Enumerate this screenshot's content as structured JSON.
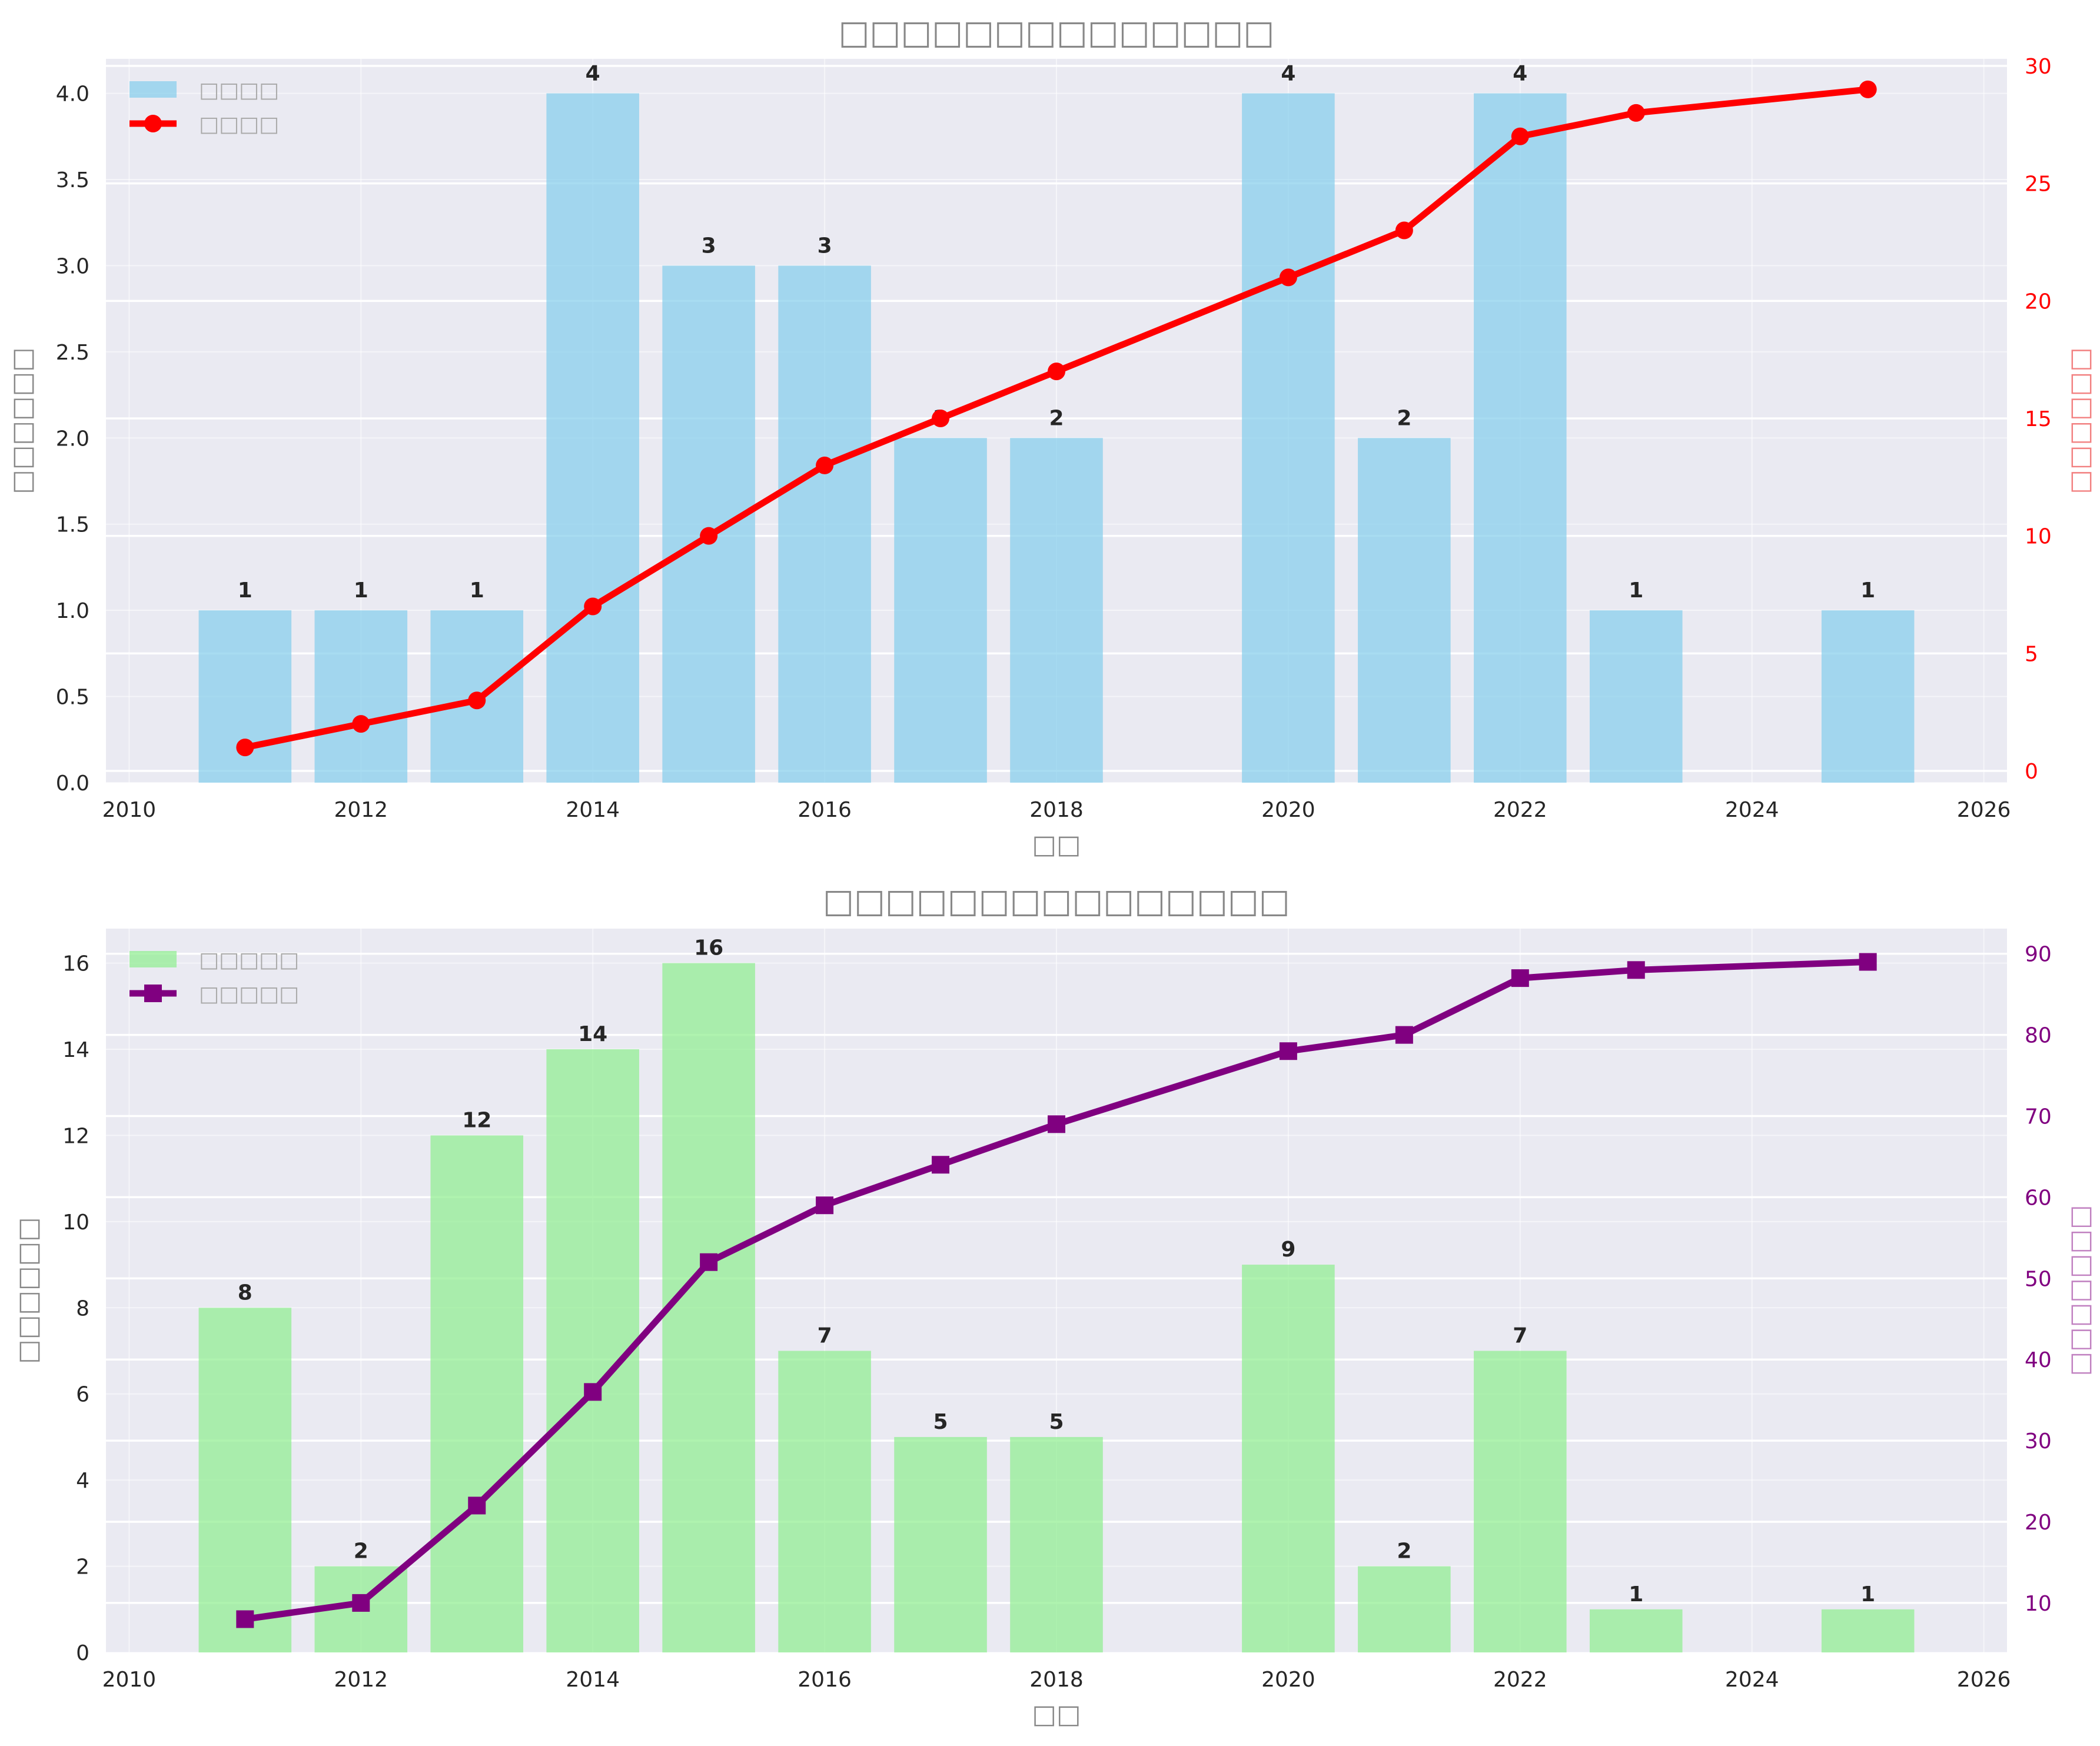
{
  "chart_data": [
    {
      "type": "bar+line",
      "title": "□□□□□□□□□□□□□□",
      "xlabel": "□□",
      "ylabel": "□□□□□□",
      "y2label": "□□□□□□",
      "xlim": [
        2009.8,
        2026.2
      ],
      "ylim": [
        0,
        4.2
      ],
      "y2lim": [
        -0.5,
        30.3
      ],
      "xticks": [
        2010,
        2012,
        2014,
        2016,
        2018,
        2020,
        2022,
        2024,
        2026
      ],
      "yticks": [
        0.0,
        0.5,
        1.0,
        1.5,
        2.0,
        2.5,
        3.0,
        3.5,
        4.0
      ],
      "ytick_labels": [
        "0.0",
        "0.5",
        "1.0",
        "1.5",
        "2.0",
        "2.5",
        "3.0",
        "3.5",
        "4.0"
      ],
      "y2ticks": [
        0,
        5,
        10,
        15,
        20,
        25,
        30
      ],
      "legend_position": "top-left",
      "grid": true,
      "bar_series": {
        "name": "□□□□",
        "color": "#87ceeb",
        "x": [
          2011,
          2012,
          2013,
          2014,
          2015,
          2016,
          2017,
          2018,
          2020,
          2021,
          2022,
          2023,
          2025
        ],
        "values": [
          1,
          1,
          1,
          4,
          3,
          3,
          2,
          2,
          4,
          2,
          4,
          1,
          1
        ]
      },
      "line_series": {
        "name": "□□□□",
        "color": "#ff0000",
        "marker": "circle",
        "x": [
          2011,
          2012,
          2013,
          2014,
          2015,
          2016,
          2017,
          2018,
          2020,
          2021,
          2022,
          2023,
          2025
        ],
        "values": [
          1,
          2,
          3,
          7,
          10,
          13,
          15,
          17,
          21,
          23,
          27,
          28,
          29
        ]
      },
      "y2_color": "#ff0000"
    },
    {
      "type": "bar+line",
      "title": "□□□□□□□□□□□□□□□",
      "xlabel": "□□",
      "ylabel": "□□□□□□",
      "y2label": "□□□□□□□",
      "xlim": [
        2009.8,
        2026.2
      ],
      "ylim": [
        0,
        16.8
      ],
      "y2lim": [
        3.9,
        93.1
      ],
      "xticks": [
        2010,
        2012,
        2014,
        2016,
        2018,
        2020,
        2022,
        2024,
        2026
      ],
      "yticks": [
        0,
        2,
        4,
        6,
        8,
        10,
        12,
        14,
        16
      ],
      "ytick_labels": [
        "0",
        "2",
        "4",
        "6",
        "8",
        "10",
        "12",
        "14",
        "16"
      ],
      "y2ticks": [
        10,
        20,
        30,
        40,
        50,
        60,
        70,
        80,
        90
      ],
      "legend_position": "top-left",
      "grid": true,
      "bar_series": {
        "name": "□□□□□",
        "color": "#90ee90",
        "x": [
          2011,
          2012,
          2013,
          2014,
          2015,
          2016,
          2017,
          2018,
          2020,
          2021,
          2022,
          2023,
          2025
        ],
        "values": [
          8,
          2,
          12,
          14,
          16,
          7,
          5,
          5,
          9,
          2,
          7,
          1,
          1
        ]
      },
      "line_series": {
        "name": "□□□□□",
        "color": "#800080",
        "marker": "square",
        "x": [
          2011,
          2012,
          2013,
          2014,
          2015,
          2016,
          2017,
          2018,
          2020,
          2021,
          2022,
          2023,
          2025
        ],
        "values": [
          8,
          10,
          22,
          36,
          52,
          59,
          64,
          69,
          78,
          80,
          87,
          88,
          89
        ]
      },
      "y2_color": "#800080"
    }
  ]
}
